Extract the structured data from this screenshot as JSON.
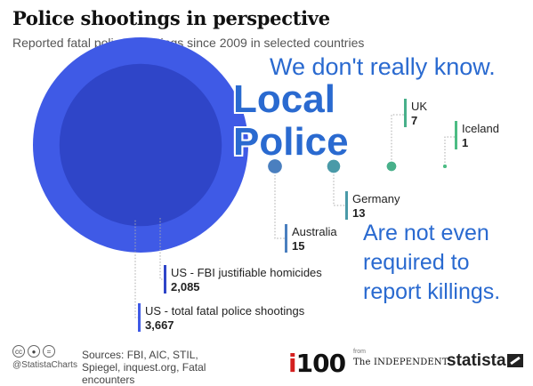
{
  "header": {
    "title": "Police shootings in perspective",
    "subtitle": "Reported fatal police shootings since 2009 in selected countries"
  },
  "annotations": {
    "top": "We don't really know.",
    "local_line1": "Local",
    "local_line2": "Police",
    "bottom_line1": "Are not even",
    "bottom_line2": "required to",
    "bottom_line3": "report killings."
  },
  "footer": {
    "sources_label": "Sources: FBI, AIC, STIL, Spiegel, inquest.org, Fatal encounters",
    "handle": "@StatistaCharts",
    "cc_icons": [
      "cc-icon",
      "by-icon",
      "equals-icon"
    ],
    "i100": "i100",
    "from": "from",
    "independent": "The INDEPENDENT",
    "statista": "statista"
  },
  "colors": {
    "us_total": "#3f5ae6",
    "us_fbi": "#2f45c8",
    "australia": "#4a7fbf",
    "germany": "#4a9aa8",
    "uk": "#48b08a",
    "iceland": "#4cbc84",
    "annotation": "#2a6ad0"
  },
  "chart_data": {
    "type": "bubble",
    "title": "Police shootings in perspective",
    "subtitle": "Reported fatal police shootings since 2009 in selected countries",
    "categories": [
      "US - total fatal police shootings",
      "US - FBI justifiable homicides",
      "Australia",
      "Germany",
      "UK",
      "Iceland"
    ],
    "values": [
      3667,
      2085,
      15,
      13,
      7,
      1
    ],
    "value_labels": [
      "3,667",
      "2,085",
      "15",
      "13",
      "7",
      "1"
    ],
    "series_keys": [
      "us_total",
      "us_fbi",
      "australia",
      "germany",
      "uk",
      "iceland"
    ]
  }
}
